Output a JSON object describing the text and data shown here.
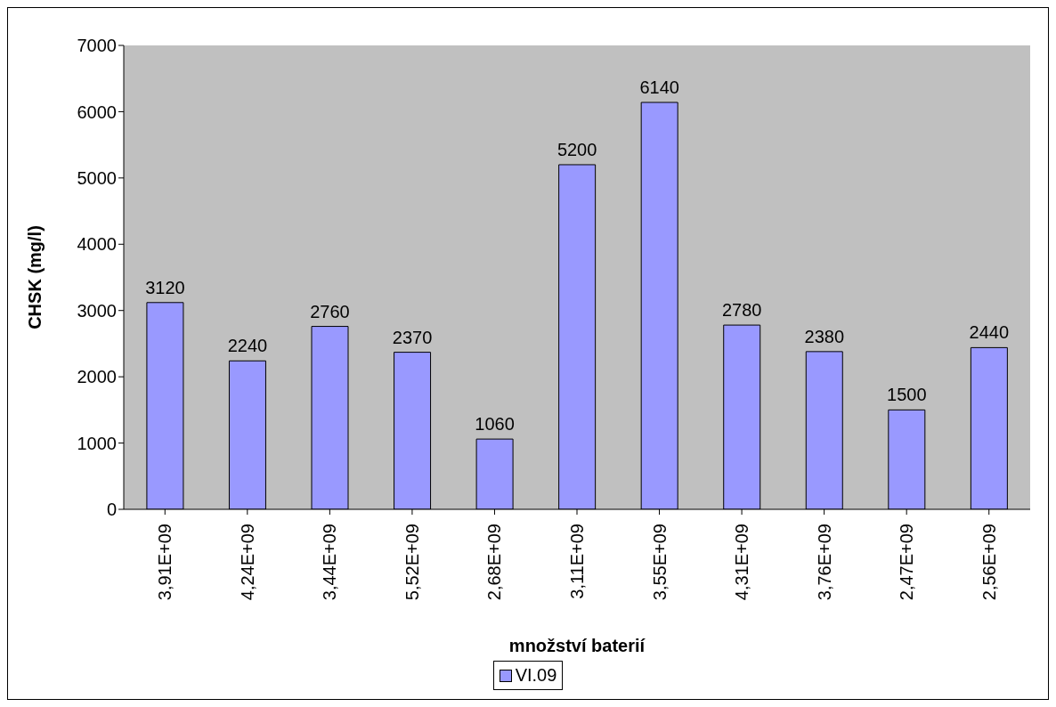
{
  "chart_data": {
    "type": "bar",
    "xlabel": "množství baterií",
    "ylabel": "CHSK (mg/l)",
    "categories": [
      "3,91E+09",
      "4,24E+09",
      "3,44E+09",
      "5,52E+09",
      "2,68E+09",
      "3,11E+09",
      "3,55E+09",
      "4,31E+09",
      "3,76E+09",
      "2,47E+09",
      "2,56E+09"
    ],
    "series": [
      {
        "name": "VI.09",
        "color": "#9999ff",
        "values": [
          3120,
          2240,
          2760,
          2370,
          1060,
          5200,
          6140,
          2780,
          2380,
          1500,
          2440
        ]
      }
    ],
    "ylim": [
      0,
      7000
    ],
    "yticks": [
      0,
      1000,
      2000,
      3000,
      4000,
      5000,
      6000,
      7000
    ],
    "grid": false,
    "legend": "bottom",
    "data_labels": true
  }
}
